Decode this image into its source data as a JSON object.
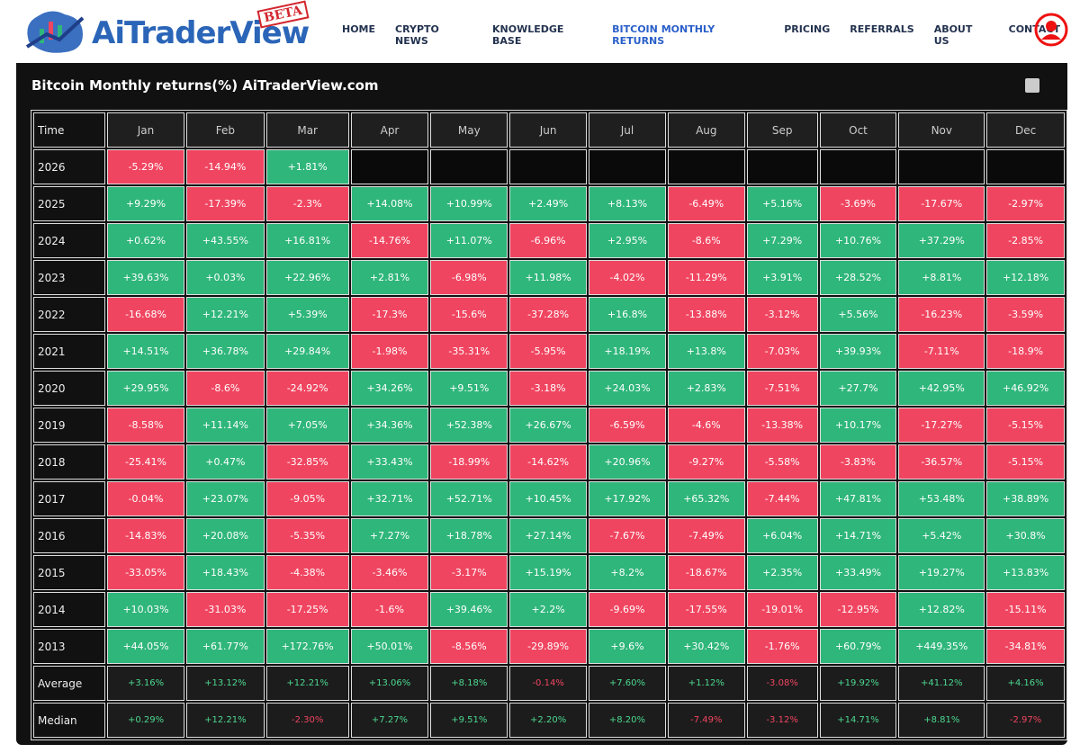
{
  "header": {
    "logo": "AiTraderView",
    "badge": "BETA",
    "nav": [
      "HOME",
      "CRYPTO NEWS",
      "KNOWLEDGE BASE",
      "BITCOIN MONTHLY RETURNS",
      "PRICING",
      "REFERRALS",
      "ABOUT US",
      "CONTACT"
    ],
    "active_nav": 3
  },
  "panel": {
    "title": "Bitcoin Monthly returns(%) AiTraderView.com"
  },
  "table": {
    "columns": [
      "Time",
      "Jan",
      "Feb",
      "Mar",
      "Apr",
      "May",
      "Jun",
      "Jul",
      "Aug",
      "Sep",
      "Oct",
      "Nov",
      "Dec"
    ],
    "rows": [
      {
        "label": "2026",
        "cells": [
          "-5.29%",
          "-14.94%",
          "+1.81%",
          null,
          null,
          null,
          null,
          null,
          null,
          null,
          null,
          null
        ]
      },
      {
        "label": "2025",
        "cells": [
          "+9.29%",
          "-17.39%",
          "-2.3%",
          "+14.08%",
          "+10.99%",
          "+2.49%",
          "+8.13%",
          "-6.49%",
          "+5.16%",
          "-3.69%",
          "-17.67%",
          "-2.97%"
        ]
      },
      {
        "label": "2024",
        "cells": [
          "+0.62%",
          "+43.55%",
          "+16.81%",
          "-14.76%",
          "+11.07%",
          "-6.96%",
          "+2.95%",
          "-8.6%",
          "+7.29%",
          "+10.76%",
          "+37.29%",
          "-2.85%"
        ]
      },
      {
        "label": "2023",
        "cells": [
          "+39.63%",
          "+0.03%",
          "+22.96%",
          "+2.81%",
          "-6.98%",
          "+11.98%",
          "-4.02%",
          "-11.29%",
          "+3.91%",
          "+28.52%",
          "+8.81%",
          "+12.18%"
        ]
      },
      {
        "label": "2022",
        "cells": [
          "-16.68%",
          "+12.21%",
          "+5.39%",
          "-17.3%",
          "-15.6%",
          "-37.28%",
          "+16.8%",
          "-13.88%",
          "-3.12%",
          "+5.56%",
          "-16.23%",
          "-3.59%"
        ]
      },
      {
        "label": "2021",
        "cells": [
          "+14.51%",
          "+36.78%",
          "+29.84%",
          "-1.98%",
          "-35.31%",
          "-5.95%",
          "+18.19%",
          "+13.8%",
          "-7.03%",
          "+39.93%",
          "-7.11%",
          "-18.9%"
        ]
      },
      {
        "label": "2020",
        "cells": [
          "+29.95%",
          "-8.6%",
          "-24.92%",
          "+34.26%",
          "+9.51%",
          "-3.18%",
          "+24.03%",
          "+2.83%",
          "-7.51%",
          "+27.7%",
          "+42.95%",
          "+46.92%"
        ]
      },
      {
        "label": "2019",
        "cells": [
          "-8.58%",
          "+11.14%",
          "+7.05%",
          "+34.36%",
          "+52.38%",
          "+26.67%",
          "-6.59%",
          "-4.6%",
          "-13.38%",
          "+10.17%",
          "-17.27%",
          "-5.15%"
        ]
      },
      {
        "label": "2018",
        "cells": [
          "-25.41%",
          "+0.47%",
          "-32.85%",
          "+33.43%",
          "-18.99%",
          "-14.62%",
          "+20.96%",
          "-9.27%",
          "-5.58%",
          "-3.83%",
          "-36.57%",
          "-5.15%"
        ]
      },
      {
        "label": "2017",
        "cells": [
          "-0.04%",
          "+23.07%",
          "-9.05%",
          "+32.71%",
          "+52.71%",
          "+10.45%",
          "+17.92%",
          "+65.32%",
          "-7.44%",
          "+47.81%",
          "+53.48%",
          "+38.89%"
        ]
      },
      {
        "label": "2016",
        "cells": [
          "-14.83%",
          "+20.08%",
          "-5.35%",
          "+7.27%",
          "+18.78%",
          "+27.14%",
          "-7.67%",
          "-7.49%",
          "+6.04%",
          "+14.71%",
          "+5.42%",
          "+30.8%"
        ]
      },
      {
        "label": "2015",
        "cells": [
          "-33.05%",
          "+18.43%",
          "-4.38%",
          "-3.46%",
          "-3.17%",
          "+15.19%",
          "+8.2%",
          "-18.67%",
          "+2.35%",
          "+33.49%",
          "+19.27%",
          "+13.83%"
        ]
      },
      {
        "label": "2014",
        "cells": [
          "+10.03%",
          "-31.03%",
          "-17.25%",
          "-1.6%",
          "+39.46%",
          "+2.2%",
          "-9.69%",
          "-17.55%",
          "-19.01%",
          "-12.95%",
          "+12.82%",
          "-15.11%"
        ]
      },
      {
        "label": "2013",
        "cells": [
          "+44.05%",
          "+61.77%",
          "+172.76%",
          "+50.01%",
          "-8.56%",
          "-29.89%",
          "+9.6%",
          "+30.42%",
          "-1.76%",
          "+60.79%",
          "+449.35%",
          "-34.81%"
        ]
      }
    ],
    "summary_rows": [
      {
        "label": "Average",
        "cells": [
          "+3.16%",
          "+13.12%",
          "+12.21%",
          "+13.06%",
          "+8.18%",
          "-0.14%",
          "+7.60%",
          "+1.12%",
          "-3.08%",
          "+19.92%",
          "+41.12%",
          "+4.16%"
        ]
      },
      {
        "label": "Median",
        "cells": [
          "+0.29%",
          "+12.21%",
          "-2.30%",
          "+7.27%",
          "+9.51%",
          "+2.20%",
          "+8.20%",
          "-7.49%",
          "-3.12%",
          "+14.71%",
          "+8.81%",
          "-2.97%"
        ]
      }
    ]
  }
}
